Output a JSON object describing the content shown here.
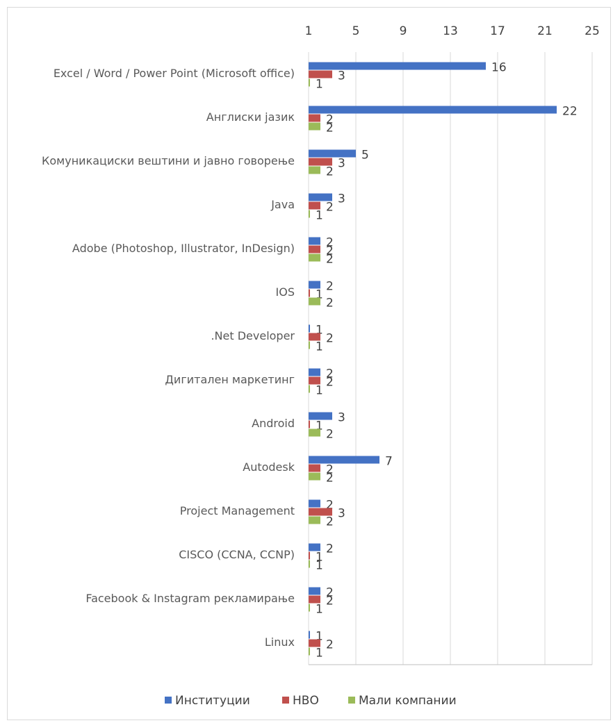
{
  "chart_data": {
    "type": "bar",
    "orientation": "horizontal",
    "categories": [
      "Excel / Word / Power Point  (Microsoft office)",
      "Англиски јазик",
      "Комуникациски вештини и јавно говорење",
      "Java",
      "Adobe (Photoshop, Illustrator, InDesign)",
      "IOS",
      ".Net Developer",
      "Дигитален маркетинг",
      "Android",
      "Autodesk",
      "Project Management",
      "CISCO (CCNA, CCNP)",
      "Facebook & Instagram рекламирање",
      "Linux"
    ],
    "series": [
      {
        "name": "Институции",
        "color": "#4472c4",
        "values": [
          16,
          22,
          5,
          3,
          2,
          2,
          1,
          2,
          3,
          7,
          2,
          2,
          2,
          1
        ]
      },
      {
        "name": "НВО",
        "color": "#c0504d",
        "values": [
          3,
          2,
          3,
          2,
          2,
          1,
          2,
          2,
          1,
          2,
          3,
          1,
          2,
          2
        ]
      },
      {
        "name": "Мали компании",
        "color": "#9bbb59",
        "values": [
          1,
          2,
          2,
          1,
          2,
          2,
          1,
          1,
          2,
          2,
          2,
          1,
          1,
          1
        ]
      }
    ],
    "xlim": [
      1,
      25
    ],
    "xticks": [
      1,
      5,
      9,
      13,
      17,
      21,
      25
    ],
    "grid": true,
    "legend": "bottom"
  }
}
